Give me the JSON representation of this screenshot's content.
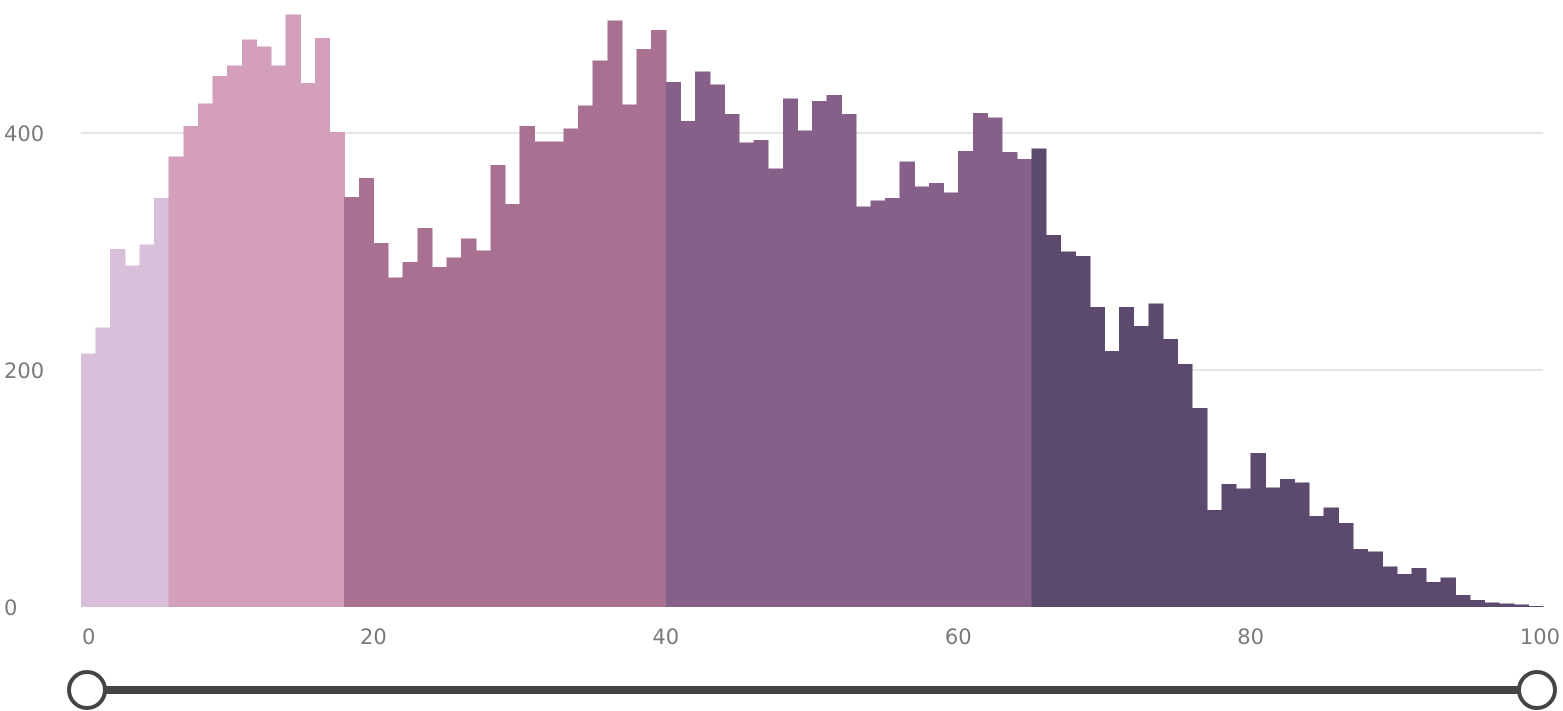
{
  "chart_data": {
    "type": "histogram",
    "title": "",
    "xlabel": "",
    "ylabel": "",
    "xlim": [
      0,
      100
    ],
    "ylim": [
      0,
      500
    ],
    "x_ticks": [
      0,
      20,
      40,
      60,
      80,
      100
    ],
    "x_tick_labels": [
      "0",
      "20",
      "40",
      "60",
      "80",
      "100"
    ],
    "y_ticks": [
      0,
      200,
      400
    ],
    "y_tick_labels": [
      "0",
      "200",
      "400"
    ],
    "grid": "horizontal",
    "bin_width": 1,
    "bins_start": 0,
    "values": [
      214,
      236,
      302,
      288,
      306,
      345,
      380,
      406,
      425,
      448,
      457,
      479,
      473,
      457,
      500,
      442,
      480,
      401,
      346,
      362,
      307,
      278,
      291,
      320,
      287,
      295,
      311,
      301,
      373,
      340,
      406,
      393,
      393,
      404,
      423,
      461,
      495,
      424,
      471,
      487,
      443,
      410,
      452,
      441,
      416,
      392,
      394,
      370,
      429,
      402,
      427,
      432,
      416,
      338,
      343,
      345,
      376,
      355,
      358,
      350,
      385,
      417,
      413,
      384,
      378,
      387,
      314,
      300,
      296,
      253,
      216,
      253,
      237,
      256,
      226,
      205,
      168,
      82,
      104,
      100,
      130,
      101,
      108,
      105,
      77,
      84,
      71,
      49,
      47,
      34,
      28,
      33,
      21,
      25,
      10,
      6,
      4,
      3,
      2,
      1
    ],
    "color_segments": [
      {
        "from": 0,
        "to": 6,
        "color": "#d8c0da"
      },
      {
        "from": 6,
        "to": 18,
        "color": "#d39fbb"
      },
      {
        "from": 18,
        "to": 40,
        "color": "#a87192"
      },
      {
        "from": 40,
        "to": 65,
        "color": "#876089"
      },
      {
        "from": 65,
        "to": 100,
        "color": "#5b4a6d"
      }
    ]
  },
  "range_slider": {
    "min": 0,
    "max": 100,
    "lower": 0,
    "upper": 100,
    "track_color": "#444444",
    "handle_fill": "#ffffff"
  }
}
